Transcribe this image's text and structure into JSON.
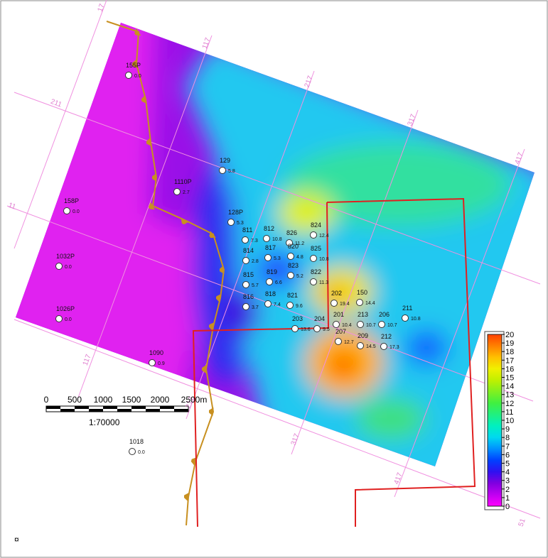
{
  "map": {
    "wells": [
      {
        "name": "155P",
        "value": "0.0"
      },
      {
        "name": "129",
        "value": "5.8"
      },
      {
        "name": "1110P",
        "value": "2.7"
      },
      {
        "name": "158P",
        "value": "0.0"
      },
      {
        "name": "128P",
        "value": "5.3"
      },
      {
        "name": "811",
        "value": "7.3"
      },
      {
        "name": "812",
        "value": "10.8"
      },
      {
        "name": "826",
        "value": "11.2"
      },
      {
        "name": "824",
        "value": "12.4"
      },
      {
        "name": "814",
        "value": "2.8"
      },
      {
        "name": "817",
        "value": "5.3"
      },
      {
        "name": "820",
        "value": "4.8"
      },
      {
        "name": "825",
        "value": "10.8"
      },
      {
        "name": "1032P",
        "value": "0.0"
      },
      {
        "name": "815",
        "value": "5.7"
      },
      {
        "name": "819",
        "value": "6.6"
      },
      {
        "name": "823",
        "value": "5.2"
      },
      {
        "name": "822",
        "value": "11.3"
      },
      {
        "name": "816",
        "value": "3.7"
      },
      {
        "name": "818",
        "value": "7.4"
      },
      {
        "name": "821",
        "value": "9.6"
      },
      {
        "name": "202",
        "value": "19.4"
      },
      {
        "name": "150",
        "value": "14.4"
      },
      {
        "name": "1026P",
        "value": "0.0"
      },
      {
        "name": "203",
        "value": "13.6"
      },
      {
        "name": "204",
        "value": "9.5"
      },
      {
        "name": "201",
        "value": "10.4"
      },
      {
        "name": "213",
        "value": "10.7"
      },
      {
        "name": "206",
        "value": "10.7"
      },
      {
        "name": "211",
        "value": "10.8"
      },
      {
        "name": "207",
        "value": "12.7"
      },
      {
        "name": "209",
        "value": "14.5"
      },
      {
        "name": "212",
        "value": "17.3"
      },
      {
        "name": "1090",
        "value": "0.9"
      },
      {
        "name": "1018",
        "value": "0.0"
      }
    ],
    "grid_labels": [
      "17",
      "117",
      "217",
      "317",
      "417",
      "211",
      "11",
      "117",
      "217",
      "317",
      "417",
      "51"
    ],
    "scale_bar": {
      "labels": [
        "0",
        "500",
        "1000",
        "1500",
        "2000",
        "2500m"
      ],
      "ratio": "1:70000"
    },
    "color_scale": {
      "ticks": [
        0,
        1,
        2,
        3,
        4,
        5,
        6,
        7,
        8,
        9,
        10,
        11,
        12,
        13,
        14,
        15,
        16,
        17,
        18,
        19,
        20
      ],
      "colors": [
        "#ff00ff",
        "#c000f0",
        "#8000e0",
        "#3010f0",
        "#0040ff",
        "#0090ff",
        "#00d8f0",
        "#00f0c0",
        "#20f080",
        "#40f040",
        "#80f020",
        "#c0f000",
        "#f0f000",
        "#ffc000",
        "#ff8000",
        "#ff4000"
      ]
    }
  }
}
